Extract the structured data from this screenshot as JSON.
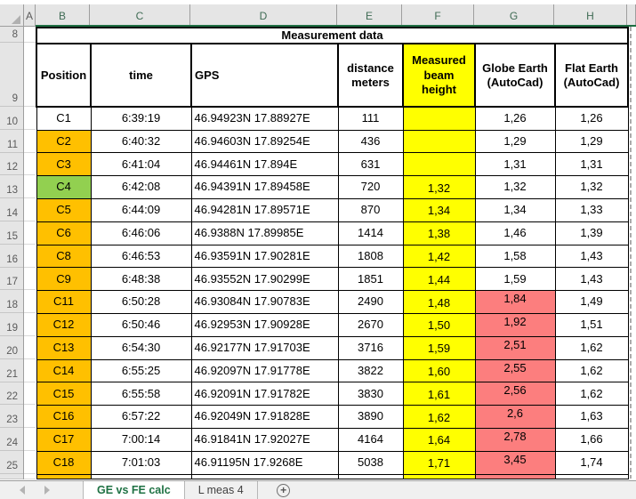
{
  "spreadsheet": {
    "column_headers": [
      "A",
      "B",
      "C",
      "D",
      "E",
      "F",
      "G",
      "H"
    ],
    "row_numbers": [
      "8",
      "9",
      "10",
      "11",
      "12",
      "13",
      "14",
      "15",
      "16",
      "17",
      "18",
      "19",
      "20",
      "21",
      "22",
      "23",
      "24",
      "25"
    ]
  },
  "table": {
    "title": "Measurement data",
    "headers": [
      "Position",
      "time",
      "GPS",
      "distance meters",
      "Measured beam height",
      "Globe Earth (AutoCad)",
      "Flat Earth (AutoCad)"
    ],
    "rows": [
      {
        "position": "C1",
        "time": "6:39:19",
        "gps": "46.94923N 17.88927E",
        "distance": "111",
        "beam": "",
        "globe": "1,26",
        "flat": "1,26",
        "position_fill": "white",
        "globe_fill": "white"
      },
      {
        "position": "C2",
        "time": "6:40:32",
        "gps": "46.94603N 17.89254E",
        "distance": "436",
        "beam": "",
        "globe": "1,29",
        "flat": "1,29",
        "position_fill": "orange",
        "globe_fill": "white"
      },
      {
        "position": "C3",
        "time": "6:41:04",
        "gps": "46.94461N 17.894E",
        "distance": "631",
        "beam": "",
        "globe": "1,31",
        "flat": "1,31",
        "position_fill": "orange",
        "globe_fill": "white"
      },
      {
        "position": "C4",
        "time": "6:42:08",
        "gps": "46.94391N 17.89458E",
        "distance": "720",
        "beam": "1,32",
        "globe": "1,32",
        "flat": "1,32",
        "position_fill": "green",
        "globe_fill": "white"
      },
      {
        "position": "C5",
        "time": "6:44:09",
        "gps": "46.94281N 17.89571E",
        "distance": "870",
        "beam": "1,34",
        "globe": "1,34",
        "flat": "1,33",
        "position_fill": "orange",
        "globe_fill": "white"
      },
      {
        "position": "C6",
        "time": "6:46:06",
        "gps": "46.9388N 17.89985E",
        "distance": "1414",
        "beam": "1,38",
        "globe": "1,46",
        "flat": "1,39",
        "position_fill": "orange",
        "globe_fill": "white"
      },
      {
        "position": "C8",
        "time": "6:46:53",
        "gps": "46.93591N 17.90281E",
        "distance": "1808",
        "beam": "1,42",
        "globe": "1,58",
        "flat": "1,43",
        "position_fill": "orange",
        "globe_fill": "white"
      },
      {
        "position": "C9",
        "time": "6:48:38",
        "gps": "46.93552N 17.90299E",
        "distance": "1851",
        "beam": "1,44",
        "globe": "1,59",
        "flat": "1,43",
        "position_fill": "orange",
        "globe_fill": "white"
      },
      {
        "position": "C11",
        "time": "6:50:28",
        "gps": "46.93084N 17.90783E",
        "distance": "2490",
        "beam": "1,48",
        "globe": "1,84",
        "flat": "1,49",
        "position_fill": "orange",
        "globe_fill": "red"
      },
      {
        "position": "C12",
        "time": "6:50:46",
        "gps": "46.92953N 17.90928E",
        "distance": "2670",
        "beam": "1,50",
        "globe": "1,92",
        "flat": "1,51",
        "position_fill": "orange",
        "globe_fill": "red"
      },
      {
        "position": "C13",
        "time": "6:54:30",
        "gps": "46.92177N 17.91703E",
        "distance": "3716",
        "beam": "1,59",
        "globe": "2,51",
        "flat": "1,62",
        "position_fill": "orange",
        "globe_fill": "red"
      },
      {
        "position": "C14",
        "time": "6:55:25",
        "gps": "46.92097N 17.91778E",
        "distance": "3822",
        "beam": "1,60",
        "globe": "2,55",
        "flat": "1,62",
        "position_fill": "orange",
        "globe_fill": "red"
      },
      {
        "position": "C15",
        "time": "6:55:58",
        "gps": "46.92091N 17.91782E",
        "distance": "3830",
        "beam": "1,61",
        "globe": "2,56",
        "flat": "1,62",
        "position_fill": "orange",
        "globe_fill": "red"
      },
      {
        "position": "C16",
        "time": "6:57:22",
        "gps": "46.92049N 17.91828E",
        "distance": "3890",
        "beam": "1,62",
        "globe": "2,6",
        "flat": "1,63",
        "position_fill": "orange",
        "globe_fill": "red"
      },
      {
        "position": "C17",
        "time": "7:00:14",
        "gps": "46.91841N 17.92027E",
        "distance": "4164",
        "beam": "1,64",
        "globe": "2,78",
        "flat": "1,66",
        "position_fill": "orange",
        "globe_fill": "red"
      },
      {
        "position": "C18",
        "time": "7:01:03",
        "gps": "46.91195N 17.9268E",
        "distance": "5038",
        "beam": "1,71",
        "globe": "3,45",
        "flat": "1,74",
        "position_fill": "orange",
        "globe_fill": "red"
      }
    ],
    "partial_next_row": {
      "position_fill": "orange",
      "beam_fill": "yellow",
      "globe_fill": "red"
    }
  },
  "colors": {
    "orange": "#FFC000",
    "green": "#92D050",
    "yellow": "#FFFF00",
    "red": "#FC7E7E",
    "tab_green": "#1F7244",
    "header_underline_green": "#1E6E42"
  },
  "sheet_tabs": {
    "active": "GE vs FE calc",
    "second": "L meas 4",
    "add": "+"
  }
}
